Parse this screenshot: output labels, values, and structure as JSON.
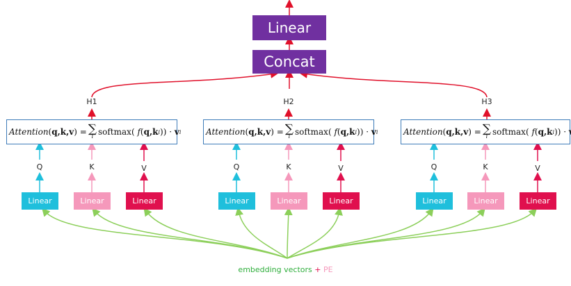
{
  "top_boxes": {
    "linear": "Linear",
    "concat": "Concat"
  },
  "heads": [
    {
      "label": "H1",
      "formula": {
        "attention": "Attention",
        "args": "q,k,v",
        "sum_sub": "i",
        "softmax": "softmax",
        "f": "f",
        "fargs": "q,k",
        "sub": "i",
        "v": "v"
      },
      "q": "Q",
      "k": "K",
      "v": "V",
      "linear_q": "Linear",
      "linear_k": "Linear",
      "linear_v": "Linear"
    },
    {
      "label": "H2",
      "formula": {
        "attention": "Attention",
        "args": "q,k,v",
        "sum_sub": "i",
        "softmax": "softmax",
        "f": "f",
        "fargs": "q,k",
        "sub": "i",
        "v": "v"
      },
      "q": "Q",
      "k": "K",
      "v": "V",
      "linear_q": "Linear",
      "linear_k": "Linear",
      "linear_v": "Linear"
    },
    {
      "label": "H3",
      "formula": {
        "attention": "Attention",
        "args": "q,k,v",
        "sum_sub": "i",
        "softmax": "softmax",
        "f": "f",
        "fargs": "q,k",
        "sub": "i",
        "v": "v"
      },
      "q": "Q",
      "k": "K",
      "v": "V",
      "linear_q": "Linear",
      "linear_k": "Linear",
      "linear_v": "Linear"
    }
  ],
  "bottom": {
    "embedding": "embedding vectors",
    "plus": "+",
    "pe": "PE"
  },
  "colors": {
    "purple": "#7030a0",
    "red": "#e0102a",
    "cyan": "#1fbfdc",
    "pink": "#f598bb",
    "crimson": "#e0104e",
    "green": "#8ccf5a",
    "border": "#3c7ab8"
  }
}
